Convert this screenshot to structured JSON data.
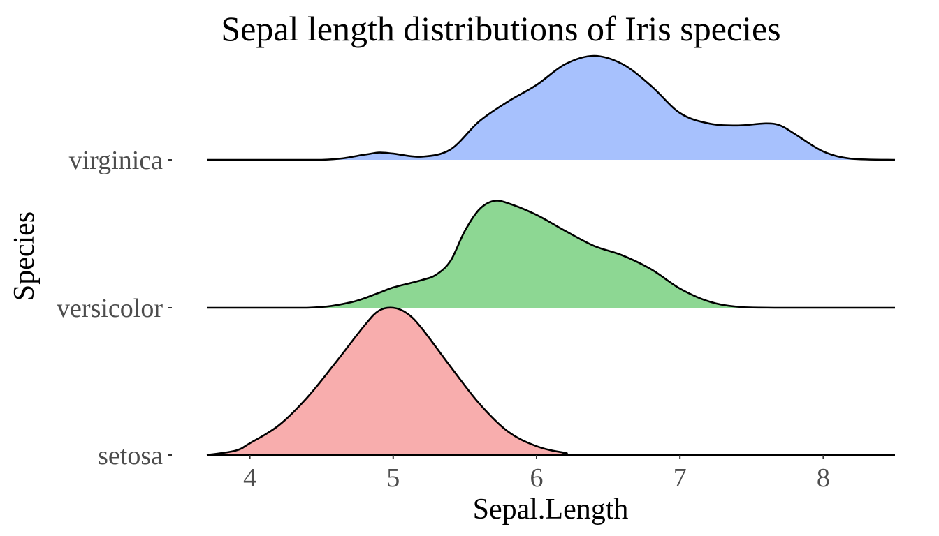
{
  "chart_data": {
    "type": "ridgeline",
    "title": "Sepal length distributions of Iris species",
    "xlabel": "Sepal.Length",
    "ylabel": "Species",
    "xlim": [
      3.7,
      8.5
    ],
    "x_ticks": [
      4,
      5,
      6,
      7,
      8
    ],
    "categories": [
      "setosa",
      "versicolor",
      "virginica"
    ],
    "grid": false,
    "legend": "none",
    "series": [
      {
        "name": "setosa",
        "color": "#F8ADAD",
        "x": [
          3.7,
          3.9,
          4.0,
          4.2,
          4.4,
          4.6,
          4.8,
          4.9,
          5.0,
          5.1,
          5.2,
          5.4,
          5.6,
          5.8,
          6.0,
          6.2,
          6.4,
          8.5
        ],
        "density": [
          0.0,
          0.03,
          0.08,
          0.2,
          0.39,
          0.63,
          0.88,
          0.98,
          1.0,
          0.96,
          0.86,
          0.6,
          0.35,
          0.16,
          0.06,
          0.015,
          0.0,
          0.0
        ]
      },
      {
        "name": "versicolor",
        "color": "#8DD793",
        "x": [
          3.7,
          4.4,
          4.7,
          4.9,
          5.0,
          5.2,
          5.3,
          5.4,
          5.5,
          5.6,
          5.7,
          5.8,
          6.0,
          6.2,
          6.4,
          6.6,
          6.8,
          7.0,
          7.2,
          7.4,
          7.7,
          8.5
        ],
        "density": [
          0.0,
          0.0,
          0.05,
          0.14,
          0.19,
          0.26,
          0.31,
          0.44,
          0.72,
          0.92,
          1.0,
          0.98,
          0.87,
          0.72,
          0.58,
          0.49,
          0.36,
          0.18,
          0.06,
          0.01,
          0.0,
          0.0
        ]
      },
      {
        "name": "virginica",
        "color": "#A7C1FD",
        "x": [
          3.7,
          4.5,
          4.8,
          4.9,
          5.0,
          5.2,
          5.4,
          5.6,
          5.8,
          6.0,
          6.2,
          6.4,
          6.6,
          6.8,
          7.0,
          7.2,
          7.4,
          7.6,
          7.7,
          7.8,
          8.0,
          8.2,
          8.5
        ],
        "density": [
          0.0,
          0.0,
          0.05,
          0.07,
          0.06,
          0.03,
          0.1,
          0.37,
          0.56,
          0.72,
          0.92,
          1.0,
          0.92,
          0.71,
          0.45,
          0.35,
          0.33,
          0.35,
          0.33,
          0.25,
          0.08,
          0.01,
          0.0
        ]
      }
    ]
  }
}
